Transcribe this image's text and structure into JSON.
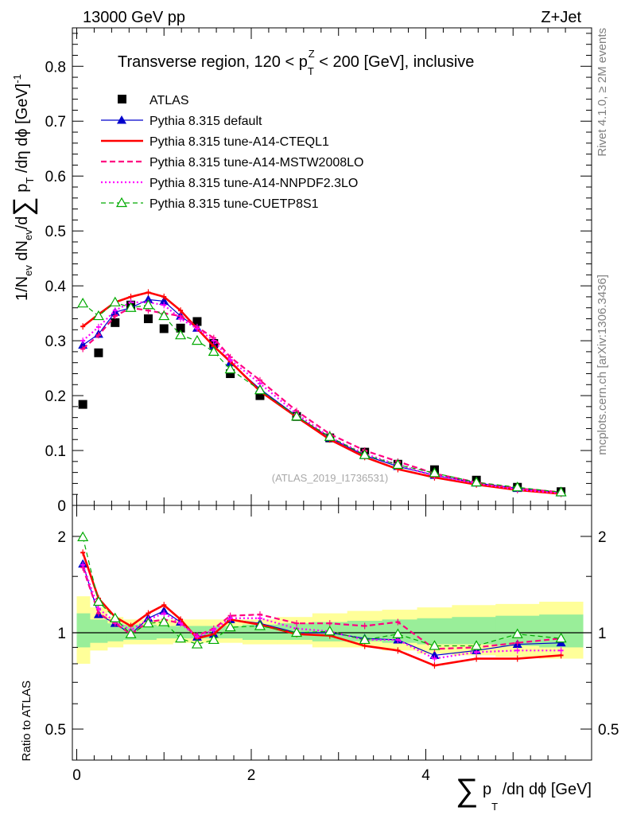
{
  "header": {
    "left": "13000 GeV pp",
    "right": "Z+Jet"
  },
  "side_labels": {
    "rivet": "Rivet 4.1.0, ≥ 2M events",
    "mcplots": "mcplots.cern.ch [arXiv:1306.3436]"
  },
  "chart_data": [
    {
      "type": "line",
      "title": "Transverse region, 120 < p_T^Z < 200 [GeV], inclusive",
      "title_parts": {
        "pre": "Transverse region, 120 < p",
        "sub": "T",
        "sup": "Z",
        "post": " < 200 [GeV], inclusive"
      },
      "ylabel": "1/N_ev dN_ev/d∑p_T/dη dϕ [GeV]^-1",
      "ylabel_parts": {
        "a": "1/N",
        "a_sub": "ev",
        "b": " dN",
        "b_sub": "ev",
        "c": "/d",
        "sum": "∑",
        "d": " p",
        "d_sub": "T",
        "e": " /dη dϕ  [GeV]",
        "sup": "-1"
      },
      "ylim": [
        0,
        0.87
      ],
      "xlim": [
        -0.05,
        5.9
      ],
      "yticks": [
        0,
        0.1,
        0.2,
        0.3,
        0.4,
        0.5,
        0.6,
        0.7,
        0.8
      ],
      "ytick_labels": [
        "0",
        "0.1",
        "0.2",
        "0.3",
        "0.4",
        "0.5",
        "0.6",
        "0.7",
        "0.8"
      ],
      "watermark": "(ATLAS_2019_I1736531)",
      "x": [
        0.07,
        0.25,
        0.44,
        0.62,
        0.82,
        1.0,
        1.19,
        1.38,
        1.57,
        1.76,
        2.1,
        2.52,
        2.9,
        3.3,
        3.68,
        4.1,
        4.58,
        5.05,
        5.55
      ],
      "series": [
        {
          "name": "ATLAS",
          "style": "data",
          "color": "#000000",
          "values": [
            0.184,
            0.278,
            0.333,
            0.365,
            0.34,
            0.322,
            0.323,
            0.335,
            0.295,
            0.24,
            0.2,
            0.162,
            0.123,
            0.097,
            0.075,
            0.065,
            0.046,
            0.033,
            0.025
          ]
        },
        {
          "name": "Pythia 8.315 default",
          "style": "solid-triangle",
          "color": "#0000cc",
          "values": [
            0.292,
            0.312,
            0.352,
            0.36,
            0.375,
            0.372,
            0.345,
            0.323,
            0.29,
            0.26,
            0.212,
            0.163,
            0.123,
            0.091,
            0.071,
            0.055,
            0.041,
            0.031,
            0.023
          ]
        },
        {
          "name": "Pythia 8.315 tune-A14-CTEQL1",
          "style": "solid-thick",
          "color": "#ff0000",
          "values": [
            0.326,
            0.348,
            0.37,
            0.38,
            0.388,
            0.38,
            0.355,
            0.322,
            0.29,
            0.262,
            0.208,
            0.161,
            0.12,
            0.088,
            0.066,
            0.051,
            0.038,
            0.028,
            0.021
          ]
        },
        {
          "name": "Pythia 8.315 tune-A14-MSTW2008LO",
          "style": "dashed",
          "color": "#ff0080",
          "values": [
            0.285,
            0.31,
            0.345,
            0.36,
            0.355,
            0.35,
            0.345,
            0.325,
            0.305,
            0.27,
            0.228,
            0.172,
            0.13,
            0.1,
            0.08,
            0.058,
            0.042,
            0.031,
            0.024
          ]
        },
        {
          "name": "Pythia 8.315 tune-A14-NNPDF2.3LO",
          "style": "dotted",
          "color": "#ff00ff",
          "values": [
            0.3,
            0.325,
            0.355,
            0.37,
            0.37,
            0.365,
            0.34,
            0.322,
            0.3,
            0.265,
            0.222,
            0.167,
            0.124,
            0.094,
            0.074,
            0.054,
            0.04,
            0.029,
            0.022
          ]
        },
        {
          "name": "Pythia 8.315 tune-CUETP8S1",
          "style": "dashed-open-triangle",
          "color": "#00aa00",
          "values": [
            0.368,
            0.345,
            0.37,
            0.36,
            0.365,
            0.345,
            0.31,
            0.3,
            0.28,
            0.248,
            0.21,
            0.162,
            0.125,
            0.092,
            0.074,
            0.059,
            0.042,
            0.033,
            0.024
          ]
        }
      ]
    },
    {
      "type": "line",
      "title": "",
      "ylabel": "Ratio to ATLAS",
      "xlabel": "∑ p_T /dη dϕ [GeV]",
      "xlabel_parts": {
        "sum": "∑",
        "a": " p",
        "a_sub": "T",
        "b": " /dη dϕ [GeV]"
      },
      "yscale": "log",
      "ylim": [
        0.4,
        2.5
      ],
      "xlim": [
        -0.05,
        5.9
      ],
      "yticks": [
        0.5,
        1,
        2
      ],
      "ytick_labels": [
        "0.5",
        "1",
        "2"
      ],
      "xticks": [
        0,
        2,
        4
      ],
      "xtick_labels": [
        "0",
        "2",
        "4"
      ],
      "bin_edges": [
        0.0,
        0.15,
        0.35,
        0.53,
        0.72,
        0.91,
        1.1,
        1.29,
        1.48,
        1.67,
        1.9,
        2.3,
        2.7,
        3.1,
        3.5,
        3.9,
        4.3,
        4.8,
        5.3,
        5.8
      ],
      "band_yellow": [
        [
          0.8,
          1.3
        ],
        [
          0.88,
          1.2
        ],
        [
          0.9,
          1.12
        ],
        [
          0.92,
          1.1
        ],
        [
          0.92,
          1.1
        ],
        [
          0.92,
          1.1
        ],
        [
          0.93,
          1.1
        ],
        [
          0.93,
          1.1
        ],
        [
          0.93,
          1.1
        ],
        [
          0.93,
          1.1
        ],
        [
          0.92,
          1.1
        ],
        [
          0.92,
          1.12
        ],
        [
          0.9,
          1.15
        ],
        [
          0.9,
          1.17
        ],
        [
          0.88,
          1.18
        ],
        [
          0.86,
          1.2
        ],
        [
          0.85,
          1.22
        ],
        [
          0.84,
          1.23
        ],
        [
          0.83,
          1.25
        ]
      ],
      "band_green": [
        [
          0.9,
          1.15
        ],
        [
          0.93,
          1.1
        ],
        [
          0.94,
          1.07
        ],
        [
          0.95,
          1.06
        ],
        [
          0.95,
          1.06
        ],
        [
          0.96,
          1.05
        ],
        [
          0.96,
          1.05
        ],
        [
          0.96,
          1.05
        ],
        [
          0.96,
          1.05
        ],
        [
          0.96,
          1.05
        ],
        [
          0.95,
          1.06
        ],
        [
          0.95,
          1.07
        ],
        [
          0.94,
          1.08
        ],
        [
          0.94,
          1.09
        ],
        [
          0.93,
          1.1
        ],
        [
          0.92,
          1.11
        ],
        [
          0.92,
          1.12
        ],
        [
          0.91,
          1.13
        ],
        [
          0.9,
          1.14
        ]
      ],
      "series": [
        {
          "name": "Pythia 8.315 default",
          "color": "#0000cc",
          "style": "solid-triangle",
          "values": [
            1.64,
            1.14,
            1.07,
            0.99,
            1.11,
            1.17,
            1.08,
            0.97,
            0.99,
            1.1,
            1.07,
            1.0,
            1.0,
            0.96,
            0.95,
            0.85,
            0.88,
            0.92,
            0.93
          ]
        },
        {
          "name": "Pythia 8.315 tune-A14-CTEQL1",
          "color": "#ff0000",
          "style": "solid-thick",
          "values": [
            1.78,
            1.28,
            1.12,
            1.05,
            1.15,
            1.22,
            1.1,
            0.96,
            0.99,
            1.1,
            1.06,
            0.99,
            0.98,
            0.91,
            0.88,
            0.79,
            0.83,
            0.83,
            0.85
          ]
        },
        {
          "name": "Pythia 8.315 tune-A14-MSTW2008LO",
          "color": "#ff0080",
          "style": "dashed",
          "values": [
            1.6,
            1.15,
            1.07,
            0.99,
            1.08,
            1.1,
            1.07,
            0.98,
            1.03,
            1.13,
            1.14,
            1.07,
            1.07,
            1.05,
            1.08,
            0.89,
            0.9,
            0.93,
            0.96
          ]
        },
        {
          "name": "Pythia 8.315 tune-A14-NNPDF2.3LO",
          "color": "#ff00ff",
          "style": "dotted",
          "values": [
            1.63,
            1.19,
            1.08,
            1.02,
            1.1,
            1.15,
            1.07,
            0.97,
            1.02,
            1.11,
            1.11,
            1.03,
            1.01,
            0.95,
            0.95,
            0.83,
            0.87,
            0.88,
            0.88
          ]
        },
        {
          "name": "Pythia 8.315 tune-CUETP8S1",
          "color": "#00aa00",
          "style": "dashed-open-triangle",
          "values": [
            1.99,
            1.25,
            1.11,
            0.99,
            1.07,
            1.08,
            0.96,
            0.92,
            0.95,
            1.04,
            1.05,
            1.0,
            1.01,
            0.95,
            0.99,
            0.91,
            0.91,
            0.99,
            0.96
          ]
        }
      ]
    }
  ]
}
